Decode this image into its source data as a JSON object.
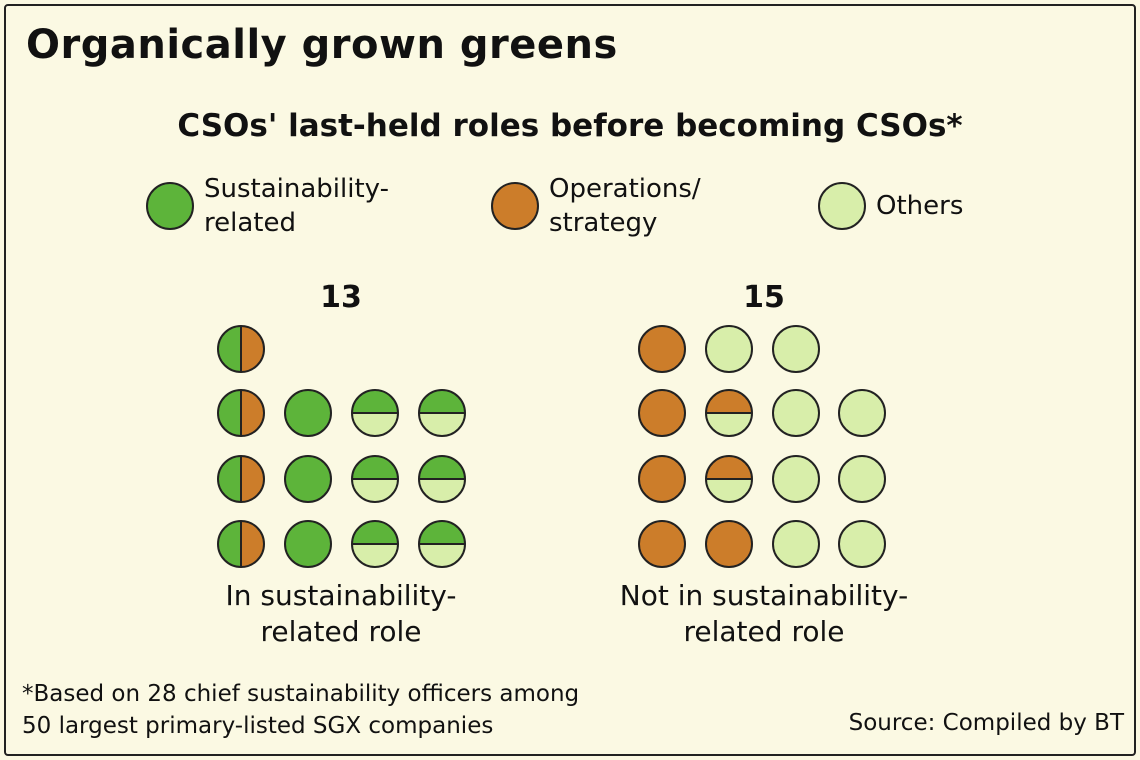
{
  "chart_data": {
    "type": "unit",
    "title": "Organically grown greens",
    "subtitle": "CSOs' last-held roles before becoming CSOs*",
    "series": [
      {
        "name": "Sustainability-related",
        "color": "#5db43a"
      },
      {
        "name": "Operations/ strategy",
        "color": "#cc7d2a"
      },
      {
        "name": "Others",
        "color": "#d8eeaa"
      }
    ],
    "groups": [
      {
        "total": 13,
        "label": "In sustainability-related role",
        "rows": [
          [
            [
              0,
              1
            ]
          ],
          [
            [
              0,
              1
            ],
            [
              0
            ],
            [
              0,
              2
            ],
            [
              0,
              2
            ]
          ],
          [
            [
              0,
              1
            ],
            [
              0
            ],
            [
              0,
              2
            ],
            [
              0,
              2
            ]
          ],
          [
            [
              0,
              1
            ],
            [
              0
            ],
            [
              0,
              2
            ],
            [
              0,
              2
            ]
          ]
        ]
      },
      {
        "total": 15,
        "label": "Not in sustainability-related role",
        "rows": [
          [
            [
              1
            ],
            [
              2
            ],
            [
              2
            ]
          ],
          [
            [
              1
            ],
            [
              1,
              2
            ],
            [
              2
            ],
            [
              2
            ]
          ],
          [
            [
              1
            ],
            [
              1,
              2
            ],
            [
              2
            ],
            [
              2
            ]
          ],
          [
            [
              1
            ],
            [
              1
            ],
            [
              2
            ],
            [
              2
            ]
          ]
        ]
      }
    ],
    "footnote": [
      "*Based on 28 chief sustainability officers among",
      "50 largest primary-listed SGX companies"
    ],
    "source": "Source: Compiled by BT"
  }
}
